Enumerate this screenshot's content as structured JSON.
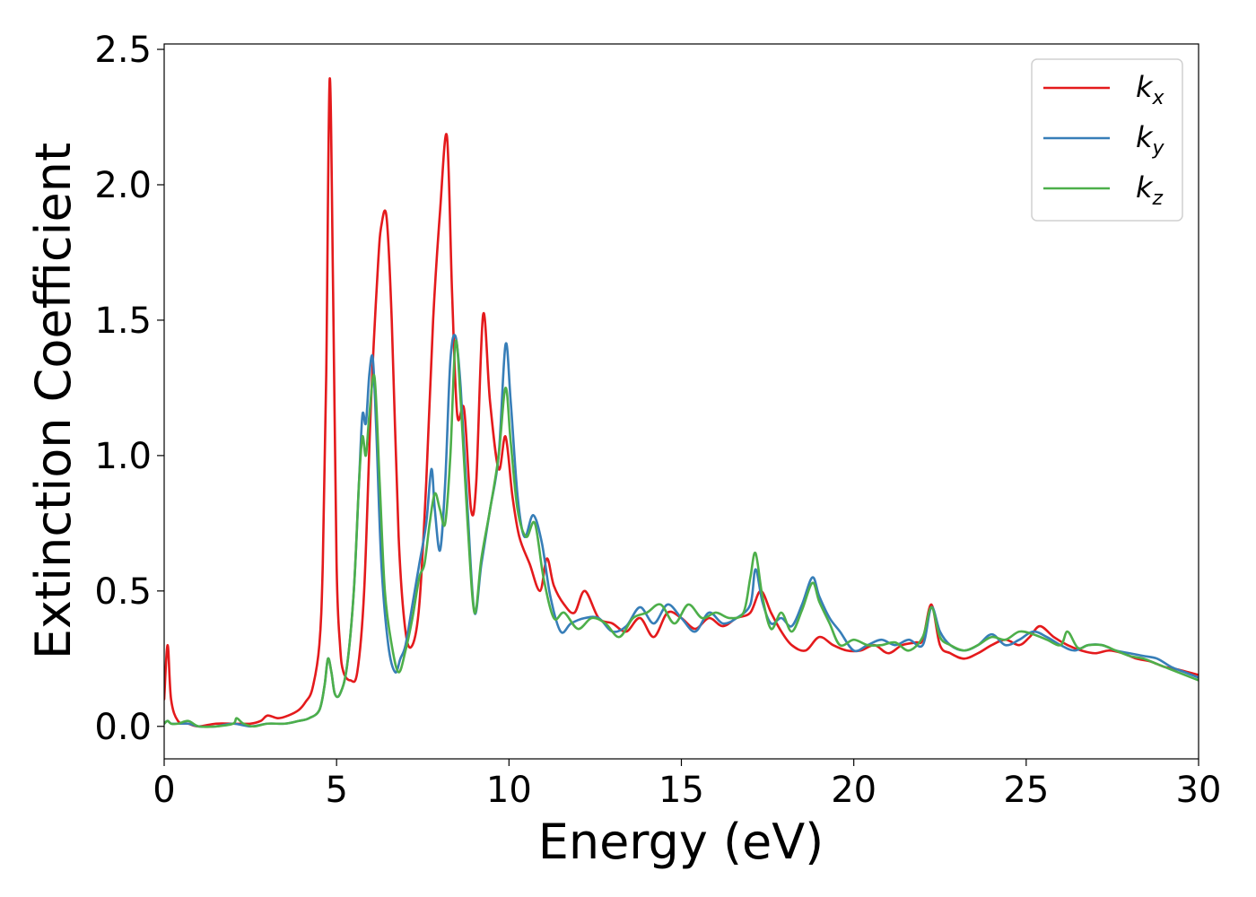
{
  "chart_data": {
    "type": "line",
    "title": "",
    "xlabel": "Energy (eV)",
    "ylabel": "Extinction Coefficient",
    "xlim": [
      0,
      30
    ],
    "ylim": [
      -0.12,
      2.52
    ],
    "xticks": [
      0,
      5,
      10,
      15,
      20,
      25,
      30
    ],
    "yticks": [
      0.0,
      0.5,
      1.0,
      1.5,
      2.0,
      2.5
    ],
    "ytick_labels": [
      "0.0",
      "0.5",
      "1.0",
      "1.5",
      "2.0",
      "2.5"
    ],
    "grid": false,
    "legend_position": "top-right",
    "series": [
      {
        "name": "k",
        "subscript": "x",
        "color": "#e41a1c",
        "x": [
          0,
          0.1,
          0.2,
          0.4,
          0.7,
          1.0,
          1.5,
          2.0,
          2.5,
          2.8,
          3.0,
          3.3,
          3.6,
          3.9,
          4.1,
          4.3,
          4.5,
          4.6,
          4.7,
          4.8,
          4.9,
          5.0,
          5.1,
          5.2,
          5.4,
          5.6,
          5.8,
          6.0,
          6.2,
          6.3,
          6.45,
          6.6,
          6.8,
          7.0,
          7.2,
          7.4,
          7.6,
          7.8,
          8.0,
          8.2,
          8.35,
          8.5,
          8.7,
          8.9,
          9.05,
          9.25,
          9.45,
          9.7,
          9.9,
          10.1,
          10.3,
          10.6,
          10.9,
          11.1,
          11.3,
          11.6,
          11.9,
          12.2,
          12.6,
          13.0,
          13.4,
          13.8,
          14.2,
          14.6,
          15.0,
          15.4,
          15.8,
          16.2,
          16.6,
          17.0,
          17.3,
          17.6,
          17.9,
          18.2,
          18.6,
          19.0,
          19.4,
          19.8,
          20.2,
          20.6,
          21.0,
          21.4,
          21.8,
          22.0,
          22.25,
          22.5,
          22.8,
          23.2,
          23.6,
          24.0,
          24.4,
          24.8,
          25.1,
          25.4,
          25.8,
          26.2,
          26.6,
          27.0,
          27.4,
          27.8,
          28.2,
          28.6,
          29.0,
          29.4,
          29.7,
          30.0
        ],
        "y": [
          0.1,
          0.3,
          0.1,
          0.02,
          0.01,
          0.0,
          0.01,
          0.01,
          0.01,
          0.02,
          0.04,
          0.03,
          0.04,
          0.06,
          0.09,
          0.14,
          0.3,
          0.6,
          1.3,
          2.39,
          1.6,
          0.6,
          0.3,
          0.2,
          0.17,
          0.2,
          0.5,
          1.2,
          1.7,
          1.85,
          1.88,
          1.5,
          0.7,
          0.35,
          0.3,
          0.45,
          0.9,
          1.5,
          1.9,
          2.18,
          1.6,
          1.15,
          1.17,
          0.8,
          0.9,
          1.52,
          1.2,
          0.95,
          1.07,
          0.85,
          0.7,
          0.6,
          0.5,
          0.62,
          0.52,
          0.45,
          0.42,
          0.5,
          0.4,
          0.38,
          0.35,
          0.4,
          0.33,
          0.42,
          0.4,
          0.36,
          0.4,
          0.37,
          0.4,
          0.42,
          0.5,
          0.42,
          0.35,
          0.3,
          0.28,
          0.33,
          0.3,
          0.28,
          0.28,
          0.3,
          0.27,
          0.3,
          0.31,
          0.32,
          0.45,
          0.3,
          0.27,
          0.25,
          0.27,
          0.3,
          0.32,
          0.3,
          0.33,
          0.37,
          0.33,
          0.3,
          0.28,
          0.27,
          0.28,
          0.27,
          0.25,
          0.24,
          0.22,
          0.21,
          0.2,
          0.19
        ]
      },
      {
        "name": "k",
        "subscript": "y",
        "color": "#377eb8",
        "x": [
          0,
          0.1,
          0.2,
          0.4,
          0.7,
          1.0,
          1.5,
          2.0,
          2.5,
          3.0,
          3.5,
          3.9,
          4.2,
          4.5,
          4.65,
          4.75,
          4.85,
          4.95,
          5.1,
          5.3,
          5.5,
          5.65,
          5.75,
          5.85,
          5.95,
          6.05,
          6.15,
          6.3,
          6.5,
          6.7,
          6.85,
          7.0,
          7.2,
          7.4,
          7.6,
          7.75,
          7.85,
          8.0,
          8.15,
          8.3,
          8.45,
          8.6,
          8.8,
          9.0,
          9.2,
          9.45,
          9.7,
          9.9,
          10.05,
          10.25,
          10.45,
          10.7,
          10.95,
          11.2,
          11.5,
          11.8,
          12.2,
          12.6,
          13.0,
          13.4,
          13.8,
          14.2,
          14.6,
          15.0,
          15.4,
          15.8,
          16.2,
          16.6,
          17.0,
          17.15,
          17.35,
          17.6,
          17.9,
          18.2,
          18.5,
          18.8,
          19.0,
          19.3,
          19.6,
          20.0,
          20.4,
          20.8,
          21.2,
          21.6,
          22.0,
          22.25,
          22.5,
          22.8,
          23.2,
          23.6,
          24.0,
          24.4,
          24.8,
          25.2,
          25.6,
          26.0,
          26.4,
          26.8,
          27.2,
          27.6,
          28.0,
          28.4,
          28.8,
          29.2,
          29.6,
          30.0
        ],
        "y": [
          0.01,
          0.02,
          0.01,
          0.01,
          0.01,
          0.0,
          0.0,
          0.01,
          0.0,
          0.01,
          0.01,
          0.02,
          0.03,
          0.06,
          0.15,
          0.25,
          0.2,
          0.12,
          0.12,
          0.22,
          0.5,
          0.9,
          1.15,
          1.12,
          1.3,
          1.36,
          1.1,
          0.6,
          0.3,
          0.2,
          0.25,
          0.3,
          0.45,
          0.6,
          0.75,
          0.95,
          0.8,
          0.65,
          0.9,
          1.35,
          1.44,
          1.25,
          0.8,
          0.42,
          0.6,
          0.8,
          1.0,
          1.41,
          1.2,
          0.85,
          0.7,
          0.78,
          0.68,
          0.48,
          0.35,
          0.38,
          0.4,
          0.4,
          0.35,
          0.37,
          0.44,
          0.38,
          0.45,
          0.4,
          0.35,
          0.42,
          0.38,
          0.4,
          0.45,
          0.58,
          0.46,
          0.38,
          0.4,
          0.37,
          0.45,
          0.55,
          0.48,
          0.4,
          0.35,
          0.28,
          0.3,
          0.32,
          0.3,
          0.32,
          0.3,
          0.44,
          0.35,
          0.3,
          0.28,
          0.3,
          0.34,
          0.3,
          0.32,
          0.35,
          0.33,
          0.3,
          0.28,
          0.3,
          0.3,
          0.28,
          0.27,
          0.26,
          0.25,
          0.22,
          0.2,
          0.18
        ]
      },
      {
        "name": "k",
        "subscript": "z",
        "color": "#4daf4a",
        "x": [
          0,
          0.1,
          0.2,
          0.4,
          0.7,
          1.0,
          1.5,
          2.0,
          2.1,
          2.3,
          2.6,
          3.0,
          3.5,
          3.9,
          4.2,
          4.5,
          4.65,
          4.75,
          4.85,
          4.95,
          5.1,
          5.3,
          5.5,
          5.65,
          5.75,
          5.85,
          5.95,
          6.1,
          6.25,
          6.4,
          6.6,
          6.8,
          7.0,
          7.2,
          7.4,
          7.55,
          7.7,
          7.85,
          8.0,
          8.15,
          8.3,
          8.45,
          8.6,
          8.8,
          9.0,
          9.2,
          9.45,
          9.7,
          9.9,
          10.05,
          10.25,
          10.5,
          10.75,
          11.0,
          11.3,
          11.6,
          12.0,
          12.4,
          12.8,
          13.2,
          13.6,
          14.0,
          14.4,
          14.8,
          15.2,
          15.6,
          16.0,
          16.4,
          16.8,
          17.0,
          17.15,
          17.35,
          17.6,
          17.9,
          18.2,
          18.5,
          18.8,
          19.0,
          19.3,
          19.6,
          20.0,
          20.4,
          20.8,
          21.2,
          21.6,
          22.0,
          22.25,
          22.5,
          22.8,
          23.2,
          23.6,
          24.0,
          24.4,
          24.8,
          25.2,
          25.6,
          26.0,
          26.2,
          26.5,
          26.8,
          27.2,
          27.6,
          28.0,
          28.4,
          28.8,
          29.2,
          29.6,
          30.0
        ],
        "y": [
          0.01,
          0.02,
          0.01,
          0.01,
          0.02,
          0.0,
          0.0,
          0.01,
          0.03,
          0.01,
          0.0,
          0.01,
          0.01,
          0.02,
          0.03,
          0.06,
          0.15,
          0.25,
          0.2,
          0.12,
          0.12,
          0.22,
          0.5,
          0.9,
          1.07,
          1.0,
          1.15,
          1.29,
          0.9,
          0.5,
          0.3,
          0.2,
          0.28,
          0.4,
          0.55,
          0.6,
          0.75,
          0.86,
          0.8,
          0.75,
          1.0,
          1.42,
          1.2,
          0.75,
          0.42,
          0.62,
          0.8,
          1.0,
          1.25,
          1.05,
          0.8,
          0.7,
          0.75,
          0.55,
          0.4,
          0.42,
          0.36,
          0.4,
          0.38,
          0.33,
          0.4,
          0.42,
          0.45,
          0.38,
          0.45,
          0.4,
          0.42,
          0.4,
          0.42,
          0.55,
          0.64,
          0.48,
          0.36,
          0.42,
          0.35,
          0.43,
          0.53,
          0.46,
          0.38,
          0.3,
          0.32,
          0.3,
          0.3,
          0.31,
          0.28,
          0.33,
          0.44,
          0.33,
          0.3,
          0.28,
          0.3,
          0.33,
          0.32,
          0.35,
          0.34,
          0.32,
          0.3,
          0.35,
          0.29,
          0.3,
          0.3,
          0.28,
          0.26,
          0.25,
          0.23,
          0.21,
          0.19,
          0.17
        ]
      }
    ]
  }
}
